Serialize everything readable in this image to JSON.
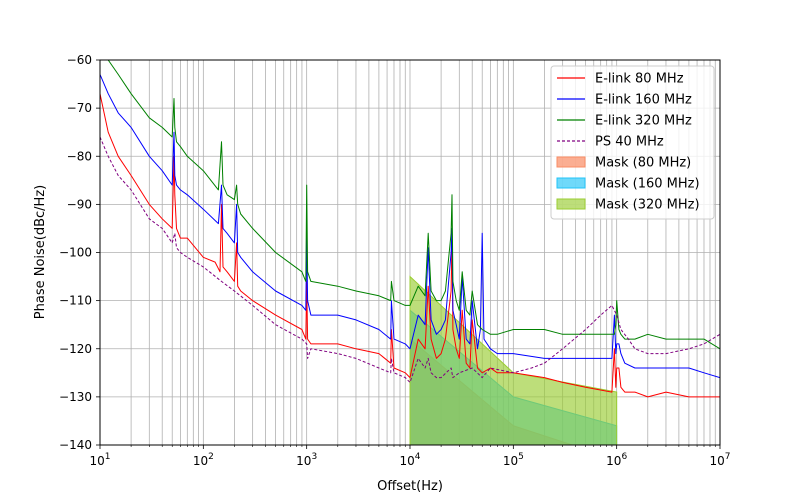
{
  "chart_data": {
    "type": "line",
    "xlabel": "Offset(Hz)",
    "ylabel": "Phase Noise(dBc/Hz)",
    "xscale": "log",
    "xlim": [
      10,
      10000000
    ],
    "ylim": [
      -140,
      -60
    ],
    "grid": true,
    "legend_position": "top-right",
    "x_ticks": [
      {
        "value": 10,
        "base": "10",
        "exp": "1"
      },
      {
        "value": 100,
        "base": "10",
        "exp": "2"
      },
      {
        "value": 1000,
        "base": "10",
        "exp": "3"
      },
      {
        "value": 10000,
        "base": "10",
        "exp": "4"
      },
      {
        "value": 100000,
        "base": "10",
        "exp": "5"
      },
      {
        "value": 1000000,
        "base": "10",
        "exp": "6"
      },
      {
        "value": 10000000,
        "base": "10",
        "exp": "7"
      }
    ],
    "y_ticks": [
      {
        "value": -60,
        "label": "−60"
      },
      {
        "value": -70,
        "label": "−70"
      },
      {
        "value": -80,
        "label": "−80"
      },
      {
        "value": -90,
        "label": "−90"
      },
      {
        "value": -100,
        "label": "−100"
      },
      {
        "value": -110,
        "label": "−110"
      },
      {
        "value": -120,
        "label": "−120"
      },
      {
        "value": -130,
        "label": "−130"
      },
      {
        "value": -140,
        "label": "−140"
      }
    ],
    "series": [
      {
        "name": "E-link 80 MHz",
        "kind": "line",
        "color": "#ff0000",
        "dash": false,
        "x": [
          10,
          12,
          15,
          20,
          30,
          40,
          50,
          52,
          53,
          55,
          60,
          70,
          100,
          130,
          145,
          150,
          155,
          170,
          200,
          210,
          215,
          230,
          300,
          500,
          900,
          980,
          1000,
          1020,
          1100,
          2000,
          3000,
          5000,
          6500,
          6600,
          7000,
          9000,
          10000,
          12000,
          14000,
          15000,
          16000,
          18000,
          20000,
          22000,
          25000,
          25500,
          26000,
          28000,
          30000,
          32000,
          35000,
          38000,
          40000,
          45000,
          50000,
          60000,
          70000,
          100000,
          200000,
          300000,
          500000,
          900000,
          950000,
          980000,
          1000000,
          1050000,
          1100000,
          1200000,
          1500000,
          2000000,
          3000000,
          5000000,
          7000000,
          10000000
        ],
        "y": [
          -67,
          -75,
          -80,
          -84,
          -90,
          -93,
          -95,
          -80,
          -88,
          -95,
          -97,
          -97,
          -101,
          -102,
          -104,
          -90,
          -103,
          -104,
          -106,
          -98,
          -107,
          -108,
          -110,
          -113,
          -116,
          -118,
          -106,
          -118,
          -119,
          -119,
          -120,
          -121,
          -123,
          -116,
          -124,
          -125,
          -126,
          -118,
          -120,
          -107,
          -118,
          -122,
          -121,
          -118,
          -108,
          -96,
          -116,
          -120,
          -122,
          -112,
          -123,
          -124,
          -114,
          -124,
          -125,
          -124,
          -125,
          -125,
          -126,
          -127,
          -128,
          -129,
          -120,
          -128,
          -124,
          -124,
          -128,
          -129,
          -129,
          -130,
          -129,
          -130,
          -130,
          -130
        ]
      },
      {
        "name": "E-link 160 MHz",
        "kind": "line",
        "color": "#0000ff",
        "dash": false,
        "x": [
          10,
          12,
          15,
          20,
          30,
          40,
          50,
          52,
          53,
          55,
          60,
          70,
          100,
          140,
          150,
          155,
          170,
          200,
          210,
          215,
          230,
          300,
          500,
          900,
          980,
          1000,
          1020,
          1100,
          2000,
          3000,
          5000,
          6500,
          6600,
          7000,
          9000,
          10000,
          12000,
          14000,
          15000,
          16000,
          18000,
          20000,
          22000,
          25000,
          25500,
          26000,
          28000,
          30000,
          32000,
          35000,
          38000,
          40000,
          45000,
          48000,
          50000,
          52000,
          60000,
          70000,
          100000,
          200000,
          300000,
          500000,
          900000,
          950000,
          980000,
          1000000,
          1050000,
          1100000,
          1200000,
          1500000,
          2000000,
          3000000,
          5000000,
          7000000,
          10000000
        ],
        "y": [
          -63,
          -67,
          -71,
          -74,
          -80,
          -83,
          -86,
          -75,
          -84,
          -86,
          -87,
          -88,
          -91,
          -94,
          -86,
          -95,
          -96,
          -98,
          -90,
          -100,
          -101,
          -104,
          -108,
          -111,
          -112,
          -96,
          -110,
          -113,
          -113,
          -114,
          -116,
          -118,
          -110,
          -118,
          -119,
          -120,
          -113,
          -115,
          -99,
          -114,
          -117,
          -116,
          -114,
          -100,
          -95,
          -112,
          -115,
          -118,
          -105,
          -118,
          -119,
          -110,
          -120,
          -116,
          -96,
          -118,
          -120,
          -121,
          -121,
          -122,
          -122,
          -122,
          -122,
          -113,
          -121,
          -119,
          -119,
          -121,
          -123,
          -124,
          -124,
          -124,
          -124,
          -125,
          -126
        ]
      },
      {
        "name": "E-link 320 MHz",
        "kind": "line",
        "color": "#008000",
        "dash": false,
        "x": [
          10,
          12,
          15,
          20,
          30,
          40,
          50,
          52,
          53,
          55,
          60,
          70,
          100,
          140,
          150,
          155,
          170,
          200,
          210,
          215,
          230,
          300,
          500,
          900,
          980,
          1000,
          1020,
          1100,
          2000,
          3000,
          5000,
          6500,
          6600,
          7000,
          9000,
          10000,
          12000,
          14000,
          15000,
          16000,
          18000,
          20000,
          22000,
          25000,
          25500,
          26000,
          28000,
          30000,
          32000,
          35000,
          38000,
          40000,
          45000,
          50000,
          60000,
          70000,
          100000,
          200000,
          300000,
          500000,
          900000,
          950000,
          980000,
          1000000,
          1050000,
          1100000,
          1200000,
          1500000,
          2000000,
          3000000,
          5000000,
          7000000,
          10000000
        ],
        "y": [
          -57,
          -60,
          -63,
          -67,
          -72,
          -74,
          -76,
          -68,
          -74,
          -77,
          -78,
          -80,
          -83,
          -87,
          -77,
          -86,
          -88,
          -89,
          -86,
          -90,
          -92,
          -95,
          -100,
          -104,
          -106,
          -86,
          -104,
          -106,
          -107,
          -108,
          -109,
          -110,
          -106,
          -110,
          -111,
          -111,
          -107,
          -109,
          -96,
          -108,
          -110,
          -110,
          -108,
          -96,
          -88,
          -106,
          -110,
          -112,
          -104,
          -112,
          -113,
          -108,
          -115,
          -116,
          -117,
          -117,
          -116,
          -116,
          -117,
          -117,
          -117,
          -117,
          -115,
          -110,
          -116,
          -117,
          -118,
          -118,
          -117,
          -118,
          -118,
          -118,
          -120
        ]
      },
      {
        "name": "PS 40 MHz",
        "kind": "line",
        "color": "#800080",
        "dash": true,
        "x": [
          10,
          12,
          15,
          20,
          30,
          40,
          50,
          53,
          55,
          60,
          70,
          100,
          150,
          200,
          300,
          500,
          900,
          1000,
          1020,
          1100,
          2000,
          3000,
          5000,
          6500,
          6600,
          7000,
          9000,
          10000,
          12000,
          14000,
          15000,
          16000,
          18000,
          20000,
          25000,
          26000,
          30000,
          40000,
          50000,
          60000,
          100000,
          150000,
          200000,
          300000,
          500000,
          700000,
          900000,
          1000000,
          1100000,
          1300000,
          1500000,
          2000000,
          3000000,
          5000000,
          7000000,
          10000000
        ],
        "y": [
          -76,
          -80,
          -84,
          -87,
          -93,
          -95,
          -98,
          -96,
          -99,
          -100,
          -101,
          -103,
          -106,
          -108,
          -111,
          -115,
          -118,
          -119,
          -122,
          -120,
          -121,
          -122,
          -124,
          -125,
          -122,
          -125,
          -126,
          -127,
          -122,
          -124,
          -122,
          -125,
          -126,
          -126,
          -124,
          -126,
          -125,
          -124,
          -126,
          -124,
          -125,
          -124,
          -123,
          -120,
          -116,
          -113,
          -111,
          -113,
          -116,
          -118,
          -120,
          -121,
          -121,
          -120,
          -119,
          -117
        ]
      },
      {
        "name": "Mask (80 MHz)",
        "kind": "area",
        "color": "#fa8c64",
        "opacity": 0.7,
        "x": [
          10000,
          100000,
          1000000
        ],
        "y": [
          -118,
          -136,
          -143
        ],
        "base": -140
      },
      {
        "name": "Mask (160 MHz)",
        "kind": "area",
        "color": "#22c4f8",
        "opacity": 0.65,
        "x": [
          10000,
          100000,
          1000000
        ],
        "y": [
          -112,
          -130,
          -136
        ],
        "base": -140
      },
      {
        "name": "Mask (320 MHz)",
        "kind": "area",
        "color": "#9acd32",
        "opacity": 0.65,
        "x": [
          10000,
          100000,
          1000000
        ],
        "y": [
          -105,
          -125,
          -129
        ],
        "base": -140
      }
    ]
  }
}
